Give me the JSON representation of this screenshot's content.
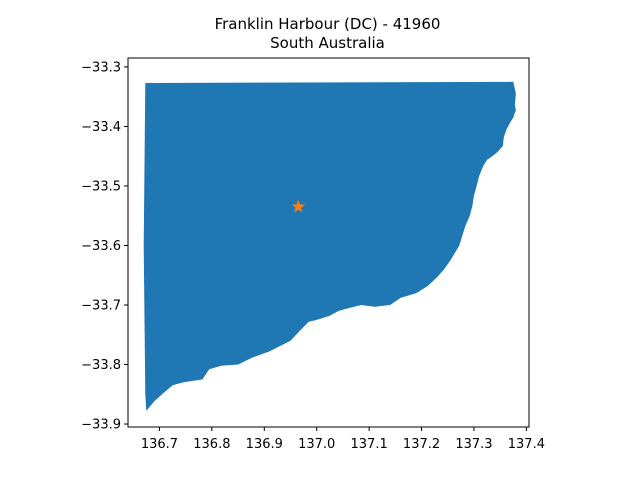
{
  "title": {
    "line1": "Franklin Harbour (DC) - 41960",
    "line2": "South Australia"
  },
  "map": {
    "region_color": "#1f77b4",
    "marker_color": "#ff7f0e",
    "marker_shape": "star",
    "marker": {
      "lon": 136.965,
      "lat": -33.535
    },
    "x_ticks": [
      {
        "value": 136.7,
        "label": "136.7"
      },
      {
        "value": 136.8,
        "label": "136.8"
      },
      {
        "value": 136.9,
        "label": "136.9"
      },
      {
        "value": 137.0,
        "label": "137.0"
      },
      {
        "value": 137.1,
        "label": "137.1"
      },
      {
        "value": 137.2,
        "label": "137.2"
      },
      {
        "value": 137.3,
        "label": "137.3"
      },
      {
        "value": 137.4,
        "label": "137.4"
      }
    ],
    "y_ticks": [
      {
        "value": -33.3,
        "label": "−33.3"
      },
      {
        "value": -33.4,
        "label": "−33.4"
      },
      {
        "value": -33.5,
        "label": "−33.5"
      },
      {
        "value": -33.6,
        "label": "−33.6"
      },
      {
        "value": -33.7,
        "label": "−33.7"
      },
      {
        "value": -33.8,
        "label": "−33.8"
      },
      {
        "value": -33.9,
        "label": "−33.9"
      }
    ],
    "xlim": [
      136.64,
      137.405
    ],
    "ylim": [
      -33.905,
      -33.285
    ],
    "boundary": [
      [
        136.673,
        -33.327
      ],
      [
        137.375,
        -33.325
      ],
      [
        137.38,
        -33.345
      ],
      [
        137.378,
        -33.365
      ],
      [
        137.38,
        -33.372
      ],
      [
        137.375,
        -33.385
      ],
      [
        137.368,
        -33.395
      ],
      [
        137.362,
        -33.405
      ],
      [
        137.357,
        -33.418
      ],
      [
        137.355,
        -33.433
      ],
      [
        137.345,
        -33.443
      ],
      [
        137.335,
        -33.45
      ],
      [
        137.325,
        -33.456
      ],
      [
        137.318,
        -33.466
      ],
      [
        137.31,
        -33.483
      ],
      [
        137.305,
        -33.5
      ],
      [
        137.3,
        -33.516
      ],
      [
        137.297,
        -33.533
      ],
      [
        137.292,
        -33.55
      ],
      [
        137.284,
        -33.566
      ],
      [
        137.278,
        -33.583
      ],
      [
        137.272,
        -33.6
      ],
      [
        137.264,
        -33.612
      ],
      [
        137.255,
        -33.625
      ],
      [
        137.243,
        -33.64
      ],
      [
        137.23,
        -33.653
      ],
      [
        137.212,
        -33.668
      ],
      [
        137.19,
        -33.68
      ],
      [
        137.16,
        -33.688
      ],
      [
        137.14,
        -33.7
      ],
      [
        137.11,
        -33.703
      ],
      [
        137.085,
        -33.7
      ],
      [
        137.062,
        -33.705
      ],
      [
        137.042,
        -33.71
      ],
      [
        137.025,
        -33.718
      ],
      [
        137.0,
        -33.725
      ],
      [
        136.985,
        -33.728
      ],
      [
        136.968,
        -33.743
      ],
      [
        136.95,
        -33.76
      ],
      [
        136.91,
        -33.778
      ],
      [
        136.878,
        -33.788
      ],
      [
        136.85,
        -33.8
      ],
      [
        136.818,
        -33.802
      ],
      [
        136.795,
        -33.808
      ],
      [
        136.782,
        -33.825
      ],
      [
        136.745,
        -33.83
      ],
      [
        136.725,
        -33.835
      ],
      [
        136.705,
        -33.85
      ],
      [
        136.69,
        -33.862
      ],
      [
        136.675,
        -33.878
      ],
      [
        136.673,
        -33.85
      ],
      [
        136.67,
        -33.6
      ],
      [
        136.673,
        -33.327
      ]
    ]
  }
}
